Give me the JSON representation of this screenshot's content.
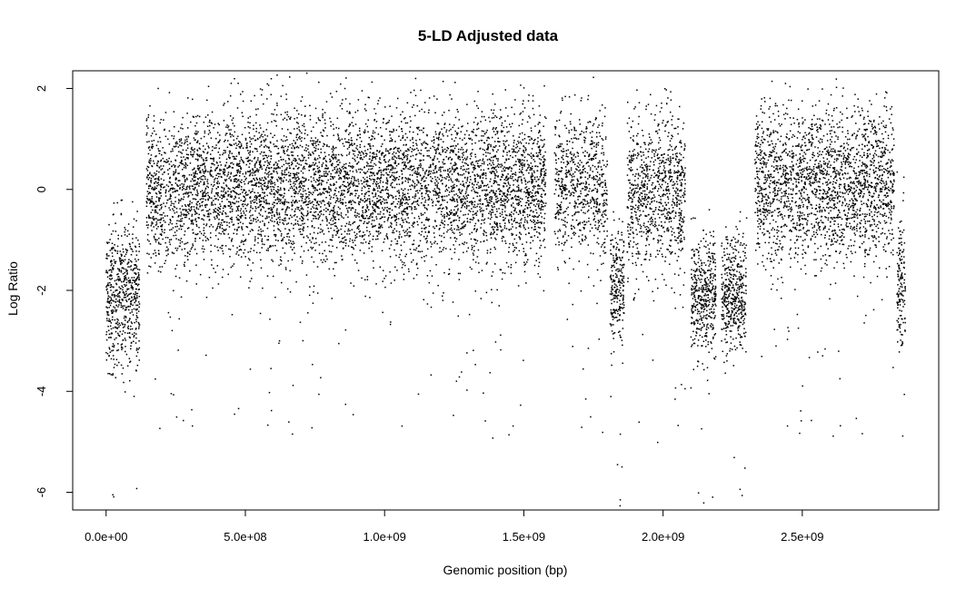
{
  "chart_data": {
    "type": "scatter",
    "title": "5-LD Adjusted data",
    "xlabel": "Genomic position (bp)",
    "ylabel": "Log Ratio",
    "xlim": [
      -120000000,
      2990000000
    ],
    "ylim": [
      -6.35,
      2.35
    ],
    "x_ticks": [
      0,
      500000000,
      1000000000,
      1500000000,
      2000000000,
      2500000000
    ],
    "x_tick_labels": [
      "0.0e+00",
      "5.0e+08",
      "1.0e+09",
      "1.5e+09",
      "2.0e+09",
      "2.5e+09"
    ],
    "y_ticks": [
      -6,
      -4,
      -2,
      0,
      2
    ],
    "y_tick_labels": [
      "-6",
      "-4",
      "-2",
      "0",
      "2"
    ],
    "point_color": "#000000",
    "grid": false,
    "legend": "none",
    "segments": [
      {
        "x_start": 0,
        "x_end": 120000000,
        "mean": -2.1,
        "sd": 0.7,
        "n": 600
      },
      {
        "x_start": 145000000,
        "x_end": 1580000000,
        "mean": 0.05,
        "sd": 0.75,
        "n": 6200
      },
      {
        "x_start": 1610000000,
        "x_end": 1800000000,
        "mean": 0.1,
        "sd": 0.75,
        "n": 700
      },
      {
        "x_start": 1810000000,
        "x_end": 1860000000,
        "mean": -2.0,
        "sd": 0.6,
        "n": 250
      },
      {
        "x_start": 1870000000,
        "x_end": 2080000000,
        "mean": -0.05,
        "sd": 0.75,
        "n": 900
      },
      {
        "x_start": 2100000000,
        "x_end": 2190000000,
        "mean": -2.1,
        "sd": 0.6,
        "n": 450
      },
      {
        "x_start": 2210000000,
        "x_end": 2300000000,
        "mean": -2.1,
        "sd": 0.6,
        "n": 450
      },
      {
        "x_start": 2330000000,
        "x_end": 2830000000,
        "mean": 0.1,
        "sd": 0.75,
        "n": 2200
      },
      {
        "x_start": 2840000000,
        "x_end": 2870000000,
        "mean": -1.8,
        "sd": 0.7,
        "n": 150
      }
    ]
  }
}
